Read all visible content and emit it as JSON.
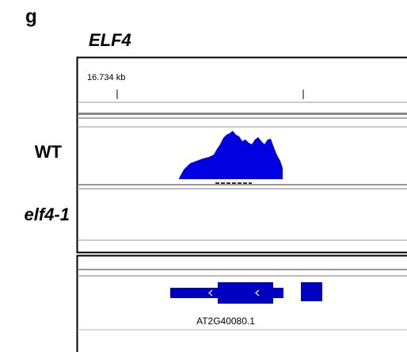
{
  "panel_label": "g",
  "gene_title": "ELF4",
  "ruler": {
    "position_label": "16.734 kb"
  },
  "tracks": [
    {
      "label": "WT"
    },
    {
      "label": "elf4-1"
    }
  ],
  "annotation": {
    "transcript_label": "AT2G40080.1"
  }
}
